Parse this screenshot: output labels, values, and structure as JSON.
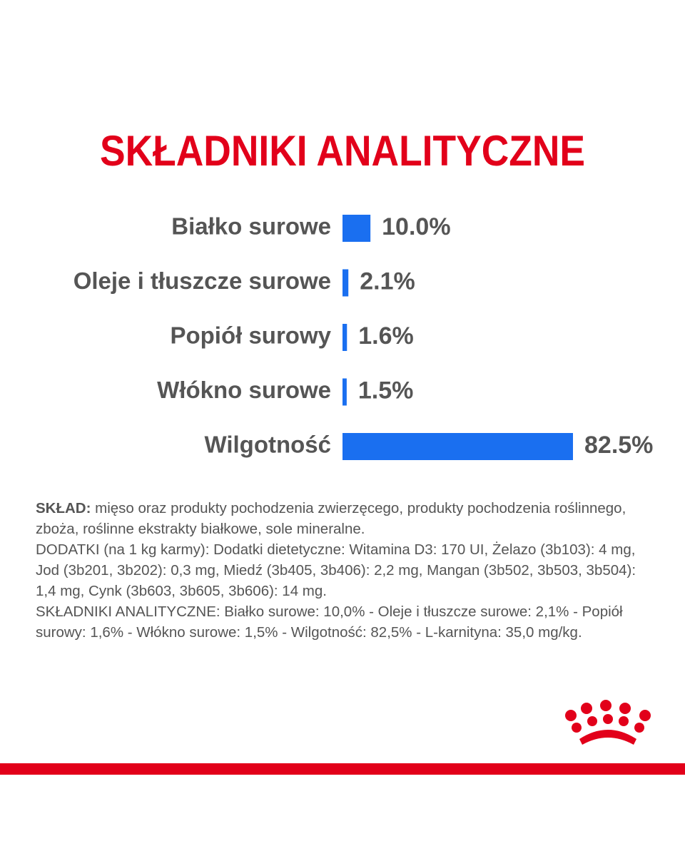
{
  "chart_data": {
    "type": "hbar",
    "title": "SKŁADNIKI ANALITYCZNE",
    "categories": [
      "Białko surowe",
      "Oleje i tłuszcze surowe",
      "Popiół surowy",
      "Włókno surowe",
      "Wilgotność"
    ],
    "values": [
      10.0,
      2.1,
      1.6,
      1.5,
      82.5
    ],
    "value_labels": [
      "10.0%",
      "2.1%",
      "1.6%",
      "1.5%",
      "82.5%"
    ],
    "color": "#1a6ff0"
  },
  "composition": {
    "label": "SKŁAD:",
    "text": "mięso oraz produkty pochodzenia zwierzęcego, produkty pochodzenia roślinnego, zboża, roślinne ekstrakty białkowe, sole mineralne."
  },
  "additives": "DODATKI (na 1 kg karmy): Dodatki dietetyczne: Witamina D3: 170 UI, Żelazo (3b103): 4 mg, Jod (3b201, 3b202): 0,3 mg, Miedź (3b405, 3b406): 2,2 mg, Mangan (3b502, 3b503, 3b504): 1,4 mg, Cynk (3b603, 3b605, 3b606): 14 mg.",
  "analytical": "SKŁADNIKI ANALITYCZNE: Białko surowe: 10,0% - Oleje i tłuszcze surowe: 2,1% - Popiół surowy: 1,6% - Włókno surowe: 1,5% - Wilgotność: 82,5% - L-karnityna: 35,0 mg/kg."
}
